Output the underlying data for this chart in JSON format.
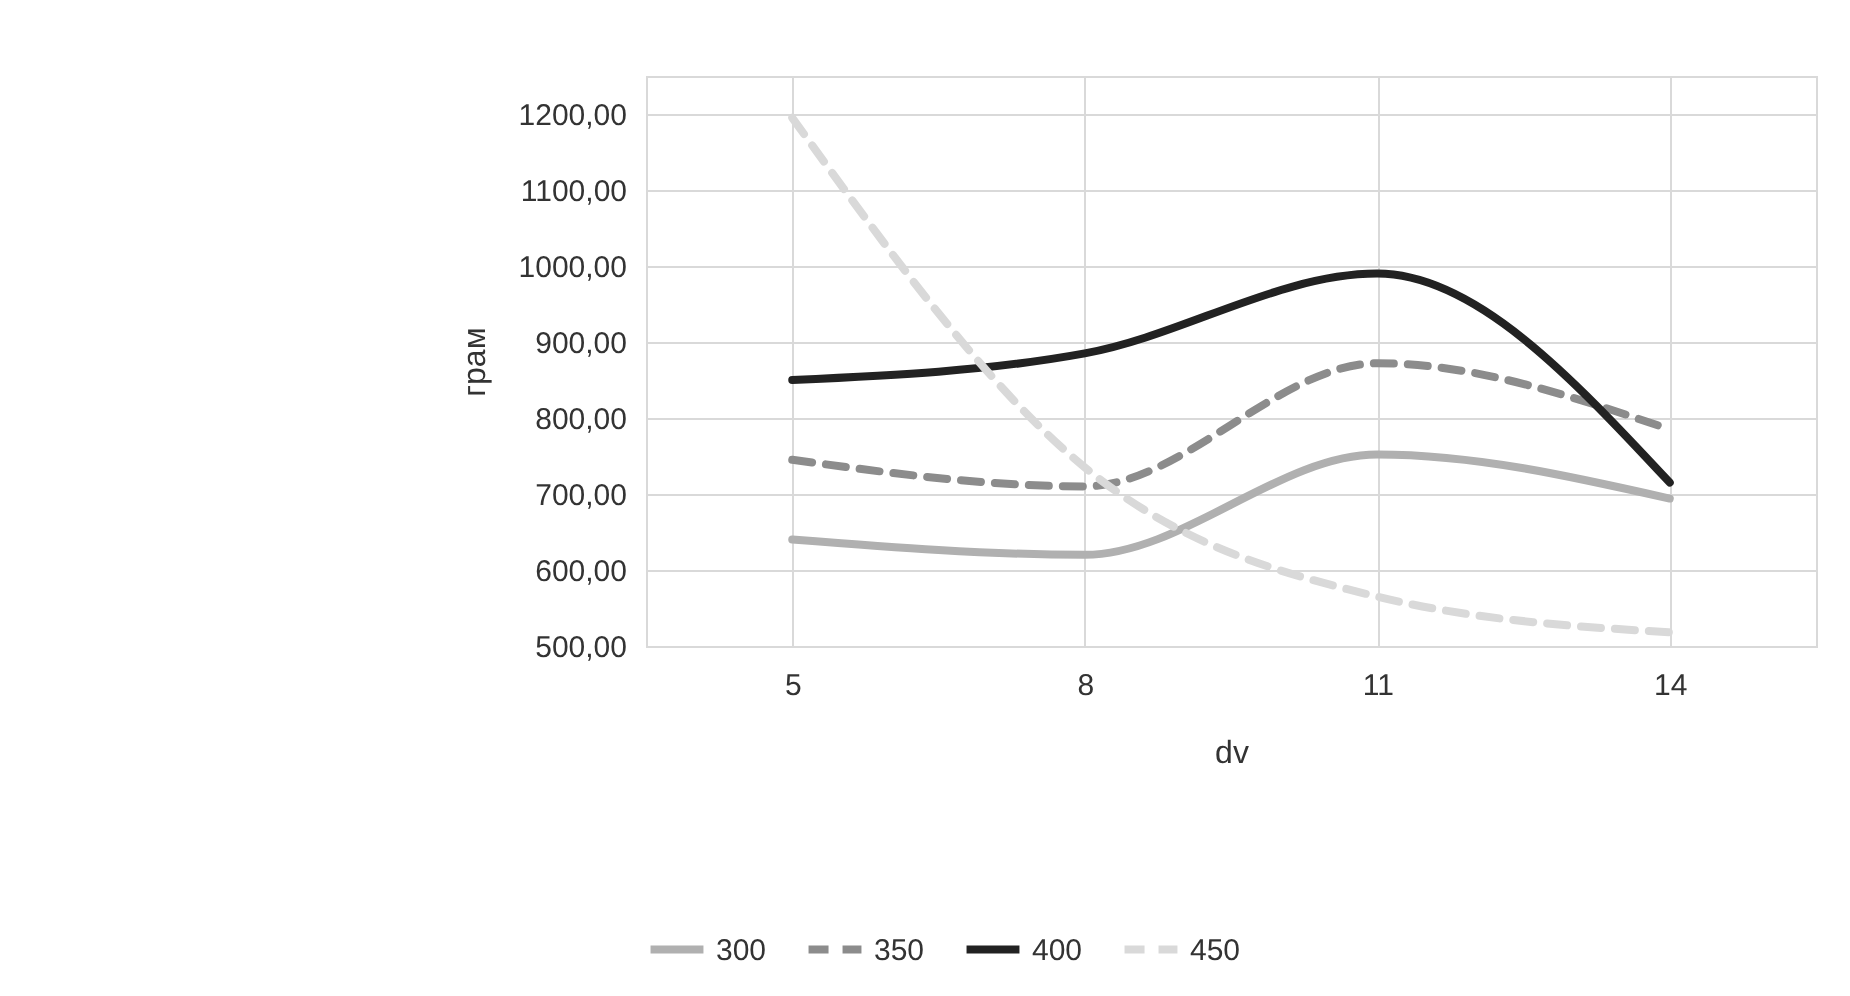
{
  "chart_data": {
    "type": "line",
    "xlabel": "dv",
    "ylabel": "грам",
    "categories": [
      "5",
      "8",
      "11",
      "14"
    ],
    "ylim": [
      500,
      1250
    ],
    "yticks": [
      {
        "value": 500,
        "label": "500,00"
      },
      {
        "value": 600,
        "label": "600,00"
      },
      {
        "value": 700,
        "label": "700,00"
      },
      {
        "value": 800,
        "label": "800,00"
      },
      {
        "value": 900,
        "label": "900,00"
      },
      {
        "value": 1000,
        "label": "1000,00"
      },
      {
        "value": 1100,
        "label": "1100,00"
      },
      {
        "value": 1200,
        "label": "1200,00"
      }
    ],
    "grid": true,
    "legend": "bottom",
    "marker": "none",
    "series": [
      {
        "name": "300",
        "color": "#b0b0b0",
        "line_style": "solid",
        "values": [
          640,
          620,
          752,
          694
        ]
      },
      {
        "name": "350",
        "color": "#8c8c8c",
        "line_style": "dashed",
        "values": [
          745,
          710,
          872,
          785
        ]
      },
      {
        "name": "400",
        "color": "#222222",
        "line_style": "solid",
        "values": [
          850,
          885,
          990,
          715
        ]
      },
      {
        "name": "450",
        "color": "#d9d9d9",
        "line_style": "dashed",
        "values": [
          1195,
          735,
          565,
          518
        ]
      }
    ]
  }
}
